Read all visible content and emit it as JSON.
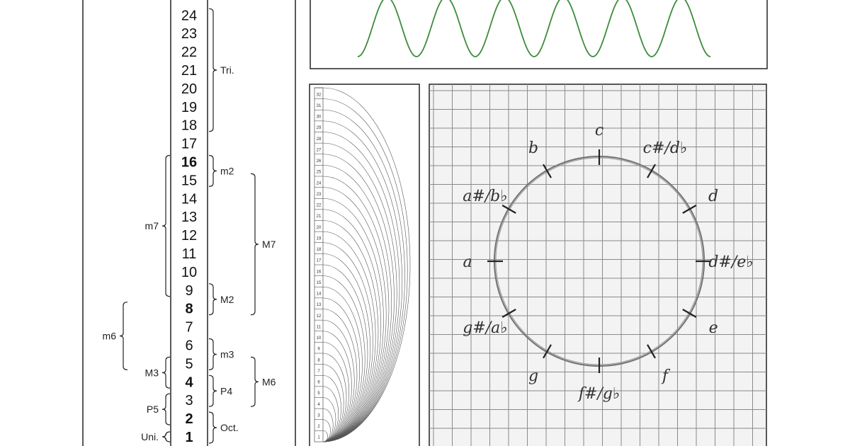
{
  "harmonic_ladder": {
    "numbers": [
      "24",
      "23",
      "22",
      "21",
      "20",
      "19",
      "18",
      "17",
      "16",
      "15",
      "14",
      "13",
      "12",
      "11",
      "10",
      "9",
      "8",
      "7",
      "6",
      "5",
      "4",
      "3",
      "2",
      "1"
    ],
    "bold_numbers": [
      "16",
      "8",
      "4",
      "2",
      "1"
    ],
    "intervals": [
      {
        "label": "Tri.",
        "span": [
          "24",
          "18"
        ],
        "side": "right"
      },
      {
        "label": "m2",
        "span": [
          "16",
          "15"
        ],
        "side": "right"
      },
      {
        "label": "M7",
        "span": [
          "15",
          "8"
        ],
        "side": "right"
      },
      {
        "label": "M2",
        "span": [
          "9",
          "8"
        ],
        "side": "right"
      },
      {
        "label": "m3",
        "span": [
          "6",
          "5"
        ],
        "side": "right"
      },
      {
        "label": "M6",
        "span": [
          "5",
          "3"
        ],
        "side": "right"
      },
      {
        "label": "P4",
        "span": [
          "4",
          "3"
        ],
        "side": "right"
      },
      {
        "label": "Oct.",
        "span": [
          "2",
          "1"
        ],
        "side": "right"
      },
      {
        "label": "m7",
        "span": [
          "16",
          "9"
        ],
        "side": "left"
      },
      {
        "label": "m6",
        "span": [
          "8",
          "5"
        ],
        "side": "left"
      },
      {
        "label": "M3",
        "span": [
          "5",
          "4"
        ],
        "side": "left"
      },
      {
        "label": "P5",
        "span": [
          "3",
          "2"
        ],
        "side": "left"
      },
      {
        "label": "Uni.",
        "span": [
          "1",
          "1"
        ],
        "side": "left"
      }
    ]
  },
  "waveform": {
    "color": "#3c8c3c",
    "peaks": 6
  },
  "arcs_panel": {
    "ruler_labels": [
      "32",
      "31",
      "30",
      "29",
      "28",
      "27",
      "26",
      "25",
      "24",
      "23",
      "22",
      "21",
      "20",
      "19",
      "18",
      "17",
      "16",
      "15",
      "14",
      "13",
      "12",
      "11",
      "10",
      "9",
      "8",
      "7",
      "6",
      "5",
      "4",
      "3",
      "2",
      "1"
    ]
  },
  "pitch_circle": {
    "notes": [
      {
        "label": "c",
        "angle": 0
      },
      {
        "label": "c#/d♭",
        "angle": 30
      },
      {
        "label": "d",
        "angle": 60
      },
      {
        "label": "d#/e♭",
        "angle": 90
      },
      {
        "label": "e",
        "angle": 120
      },
      {
        "label": "f",
        "angle": 150
      },
      {
        "label": "f#/g♭",
        "angle": 180
      },
      {
        "label": "g",
        "angle": 210
      },
      {
        "label": "g#/a♭",
        "angle": 240
      },
      {
        "label": "a",
        "angle": 270
      },
      {
        "label": "a#/b♭",
        "angle": 300
      },
      {
        "label": "b",
        "angle": 330
      }
    ]
  }
}
